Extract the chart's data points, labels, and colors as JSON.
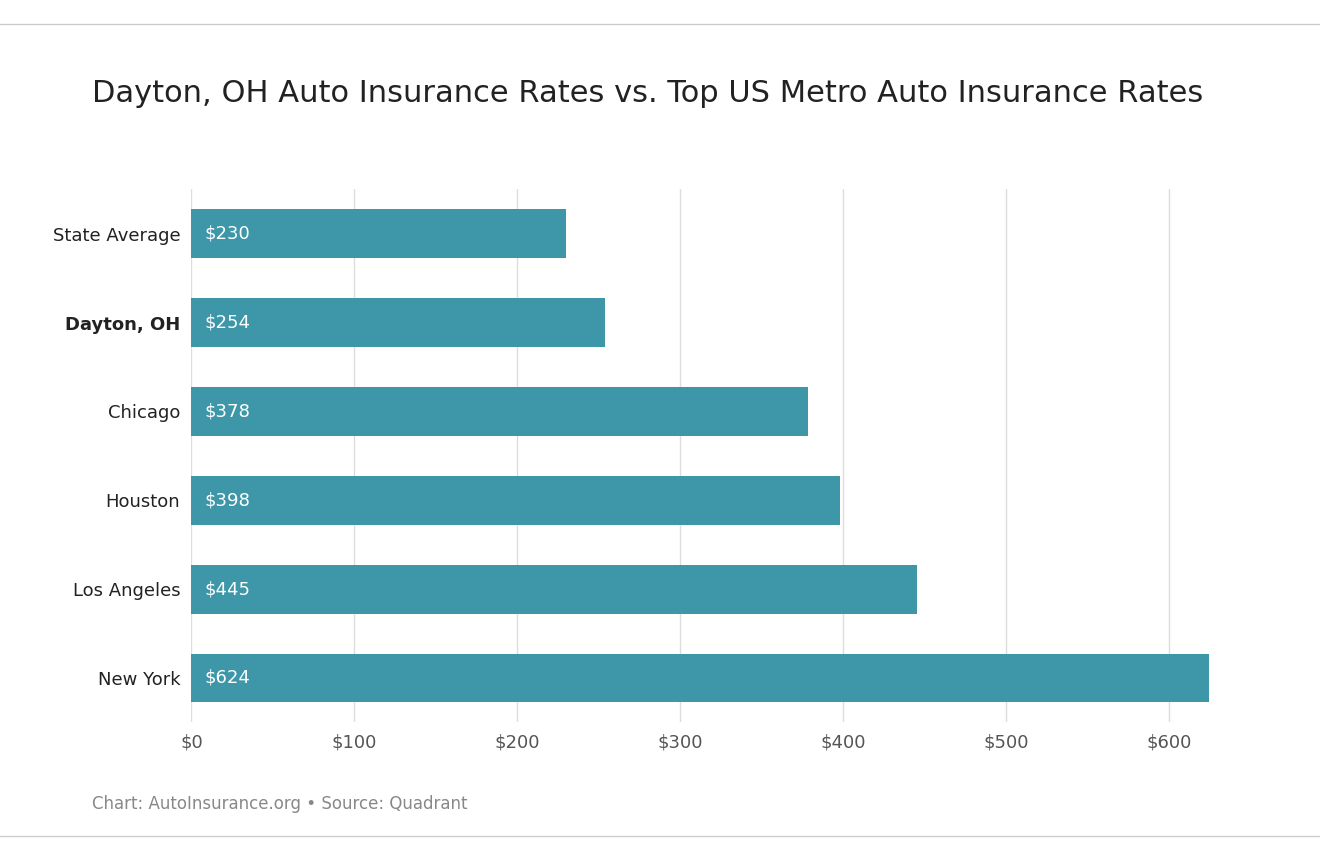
{
  "title": "Dayton, OH Auto Insurance Rates vs. Top US Metro Auto Insurance Rates",
  "categories": [
    "State Average",
    "Dayton, OH",
    "Chicago",
    "Houston",
    "Los Angeles",
    "New York"
  ],
  "values": [
    230,
    254,
    378,
    398,
    445,
    624
  ],
  "bar_color": "#3d97a8",
  "label_color": "#ffffff",
  "title_color": "#222222",
  "background_color": "#ffffff",
  "xlim": [
    0,
    660
  ],
  "xtick_values": [
    0,
    100,
    200,
    300,
    400,
    500,
    600
  ],
  "xtick_labels": [
    "$0",
    "$100",
    "$200",
    "$300",
    "$400",
    "$500",
    "$600"
  ],
  "bold_category": "Dayton, OH",
  "title_fontsize": 22,
  "tick_fontsize": 13,
  "bar_label_fontsize": 13,
  "category_fontsize": 13,
  "footer_text": "Chart: AutoInsurance.org • Source: Quadrant",
  "footer_fontsize": 12,
  "footer_color": "#888888",
  "grid_color": "#dddddd",
  "bar_height": 0.55
}
